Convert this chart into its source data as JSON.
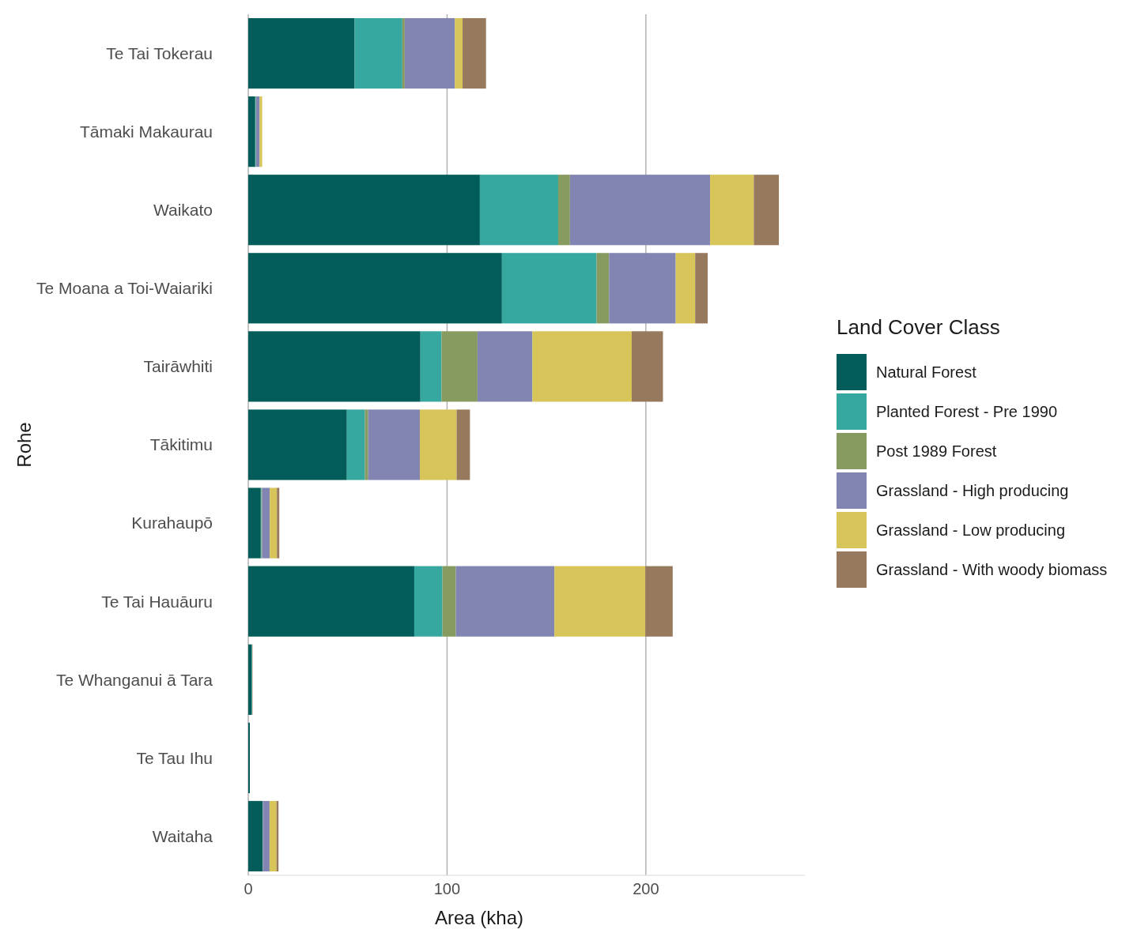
{
  "chart_data": {
    "type": "bar",
    "orientation": "horizontal",
    "stacked": true,
    "xlabel": "Area (kha)",
    "ylabel": "Rohe",
    "legend_title": "Land Cover Class",
    "legend": "right",
    "grid": "x",
    "categories": [
      "Te Tai Tokerau",
      "Tāmaki Makaurau",
      "Waikato",
      "Te Moana a Toi-Waiariki",
      "Tairāwhiti",
      "Tākitimu",
      "Kurahaupō",
      "Te Tai Hauāuru",
      "Te Whanganui ā Tara",
      "Te Tau Ihu",
      "Waitaha"
    ],
    "xlim": [
      0,
      280
    ],
    "xticks": [
      0,
      100,
      200
    ],
    "series": [
      {
        "name": "Natural Forest",
        "color": "#025d5a",
        "values": [
          53.5,
          3.5,
          116.5,
          127.6,
          86.6,
          49.6,
          6.3,
          83.5,
          1.8,
          0.8,
          7.2
        ]
      },
      {
        "name": "Planted Forest - Pre 1990",
        "color": "#37a8a0",
        "values": [
          24,
          0.3,
          39.4,
          47.6,
          10.6,
          9.1,
          0.3,
          14.2,
          0.1,
          null,
          0.1
        ]
      },
      {
        "name": "Post 1989 Forest",
        "color": "#879b60",
        "values": [
          1.2,
          0.1,
          5.9,
          6.3,
          18.1,
          1.6,
          0.3,
          6.7,
          0,
          0,
          0.1
        ]
      },
      {
        "name": "Grassland - High producing",
        "color": "#8285b1",
        "values": [
          25.2,
          1.8,
          70.5,
          33.5,
          27.6,
          26,
          3.9,
          49.6,
          0.1,
          0,
          3.3
        ]
      },
      {
        "name": "Grassland - Low producing",
        "color": "#d8c55a",
        "values": [
          3.9,
          1.3,
          22,
          9.8,
          50,
          18.5,
          3.6,
          45.7,
          0.1,
          0,
          3.5
        ]
      },
      {
        "name": "Grassland - With woody biomass",
        "color": "#977a5e",
        "values": [
          11.8,
          null,
          12.6,
          6.3,
          15.7,
          6.7,
          1.2,
          13.8,
          0.1,
          0,
          1
        ]
      }
    ]
  }
}
